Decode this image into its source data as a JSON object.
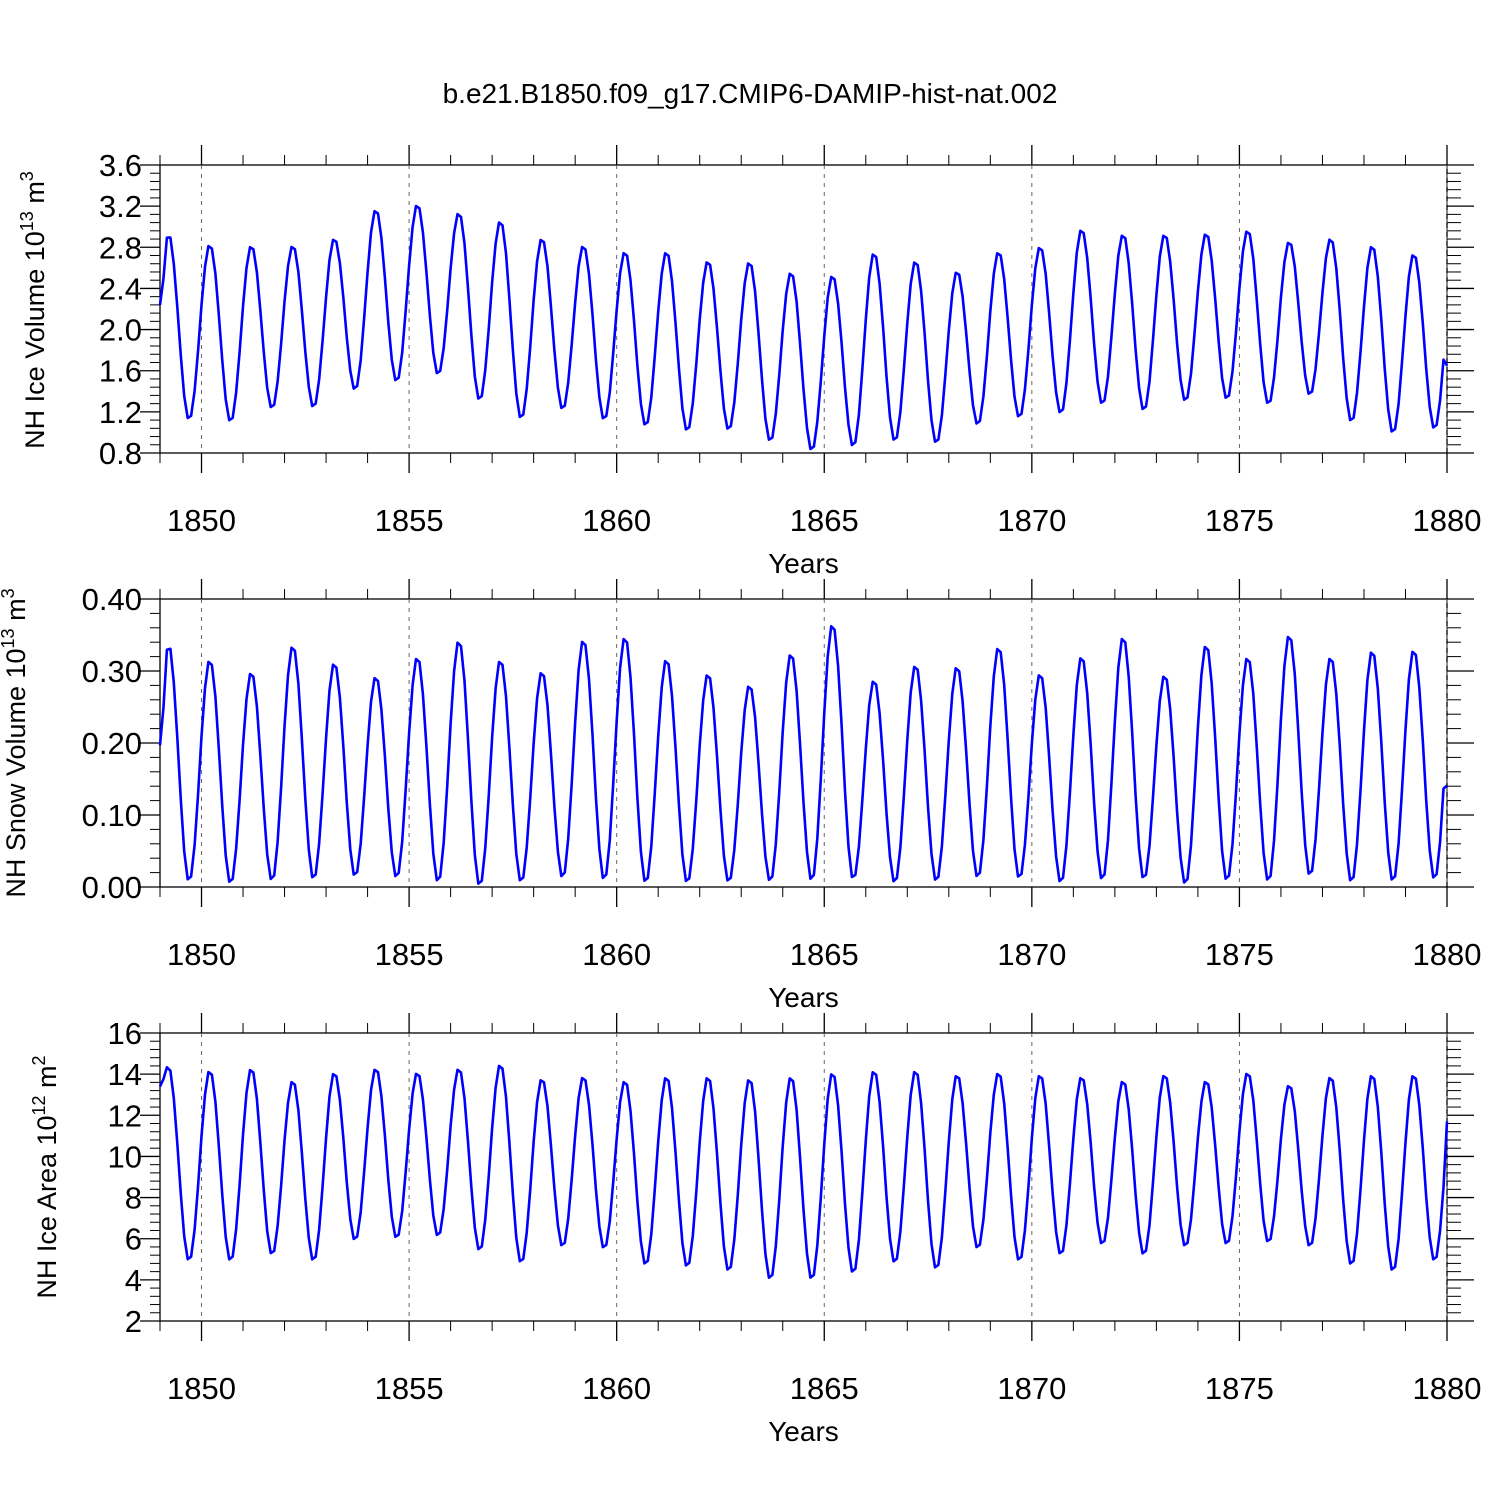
{
  "figure_title": "b.e21.B1850.f09_g17.CMIP6-DAMIP-hist-nat.002",
  "line_color": "#0000ff",
  "chart_data": [
    {
      "type": "line",
      "title": "",
      "ylabel_main": "NH Ice Volume 10",
      "ylabel_sup": "13",
      "ylabel_unit": " m",
      "ylabel_unit_sup": "3",
      "xlabel": "Years",
      "xlim": [
        1849,
        1880
      ],
      "ylim": [
        0.8,
        3.6
      ],
      "yticks": [
        0.8,
        1.2,
        1.6,
        2.0,
        2.4,
        2.8,
        3.2,
        3.6
      ],
      "ytick_labels": [
        "0.8",
        "1.2",
        "1.6",
        "2.0",
        "2.4",
        "2.8",
        "3.2",
        "3.6"
      ],
      "xticks": [
        1850,
        1855,
        1860,
        1865,
        1870,
        1875,
        1880
      ],
      "xtick_labels": [
        "1850",
        "1855",
        "1860",
        "1865",
        "1870",
        "1875",
        "1880"
      ],
      "grid": "vertical dashed at major x ticks",
      "series": [
        {
          "maxima": [
            2.94,
            2.83,
            2.82,
            2.82,
            2.89,
            3.17,
            3.22,
            3.14,
            3.06,
            2.89,
            2.82,
            2.76,
            2.76,
            2.67,
            2.66,
            2.56,
            2.53,
            2.75,
            2.67,
            2.57,
            2.76,
            2.81,
            2.98,
            2.93,
            2.93,
            2.94,
            2.97,
            2.86,
            2.89,
            2.82,
            2.74
          ],
          "minima": [
            1.12,
            1.1,
            1.23,
            1.24,
            1.41,
            1.49,
            1.56,
            1.31,
            1.13,
            1.22,
            1.12,
            1.06,
            1.01,
            1.02,
            0.91,
            0.82,
            0.86,
            0.91,
            0.89,
            1.07,
            1.14,
            1.18,
            1.27,
            1.21,
            1.3,
            1.32,
            1.27,
            1.36,
            1.1,
            0.99,
            1.03
          ],
          "start_value": 2.24,
          "end_value": 1.65
        }
      ]
    },
    {
      "type": "line",
      "title": "",
      "ylabel_main": "NH Snow Volume 10",
      "ylabel_sup": "13",
      "ylabel_unit": " m",
      "ylabel_unit_sup": "3",
      "xlabel": "Years",
      "xlim": [
        1849,
        1880
      ],
      "ylim": [
        0.0,
        0.4
      ],
      "yticks": [
        0.0,
        0.1,
        0.2,
        0.3,
        0.4
      ],
      "ytick_labels": [
        "0.00",
        "0.10",
        "0.20",
        "0.30",
        "0.40"
      ],
      "xticks": [
        1850,
        1855,
        1860,
        1865,
        1870,
        1875,
        1880
      ],
      "xtick_labels": [
        "1850",
        "1855",
        "1860",
        "1865",
        "1870",
        "1875",
        "1880"
      ],
      "grid": "vertical dashed at major x ticks",
      "series": [
        {
          "maxima": [
            0.339,
            0.316,
            0.299,
            0.336,
            0.312,
            0.293,
            0.32,
            0.343,
            0.316,
            0.3,
            0.344,
            0.348,
            0.317,
            0.297,
            0.281,
            0.325,
            0.366,
            0.288,
            0.309,
            0.307,
            0.334,
            0.297,
            0.321,
            0.348,
            0.295,
            0.337,
            0.32,
            0.351,
            0.32,
            0.329,
            0.33
          ],
          "minima": [
            0.007,
            0.004,
            0.008,
            0.01,
            0.014,
            0.012,
            0.006,
            0.001,
            0.006,
            0.012,
            0.009,
            0.005,
            0.005,
            0.006,
            0.007,
            0.008,
            0.01,
            0.005,
            0.007,
            0.012,
            0.011,
            0.005,
            0.009,
            0.01,
            0.003,
            0.008,
            0.007,
            0.015,
            0.006,
            0.007,
            0.01
          ],
          "start_value": 0.197,
          "end_value": 0.141
        }
      ]
    },
    {
      "type": "line",
      "title": "",
      "ylabel_main": "NH Ice Area 10",
      "ylabel_sup": "12",
      "ylabel_unit": " m",
      "ylabel_unit_sup": "2",
      "xlabel": "Years",
      "xlim": [
        1849,
        1880
      ],
      "ylim": [
        2,
        16
      ],
      "yticks": [
        2,
        4,
        6,
        8,
        10,
        12,
        14,
        16
      ],
      "ytick_labels": [
        "2",
        "4",
        "6",
        "8",
        "10",
        "12",
        "14",
        "16"
      ],
      "xticks": [
        1850,
        1855,
        1860,
        1865,
        1870,
        1875,
        1880
      ],
      "xtick_labels": [
        "1850",
        "1855",
        "1860",
        "1865",
        "1870",
        "1875",
        "1880"
      ],
      "grid": "vertical dashed at major x ticks",
      "series": [
        {
          "maxima": [
            14.4,
            14.2,
            14.3,
            13.7,
            14.1,
            14.3,
            14.1,
            14.3,
            14.5,
            13.8,
            13.9,
            13.7,
            13.9,
            13.9,
            13.8,
            13.9,
            14.1,
            14.2,
            14.2,
            14.0,
            14.1,
            14.0,
            13.9,
            13.7,
            14.0,
            13.7,
            14.1,
            13.5,
            13.9,
            14.0,
            14.0
          ],
          "minima": [
            4.9,
            4.9,
            5.2,
            4.9,
            5.9,
            6.0,
            6.1,
            5.4,
            4.8,
            5.6,
            5.5,
            4.7,
            4.6,
            4.4,
            4.0,
            4.0,
            4.3,
            4.8,
            4.5,
            5.5,
            4.9,
            5.2,
            5.7,
            5.2,
            5.6,
            5.7,
            5.8,
            5.6,
            4.7,
            4.4,
            4.9
          ],
          "start_value": 13.4,
          "end_value": 11.7
        }
      ]
    }
  ]
}
